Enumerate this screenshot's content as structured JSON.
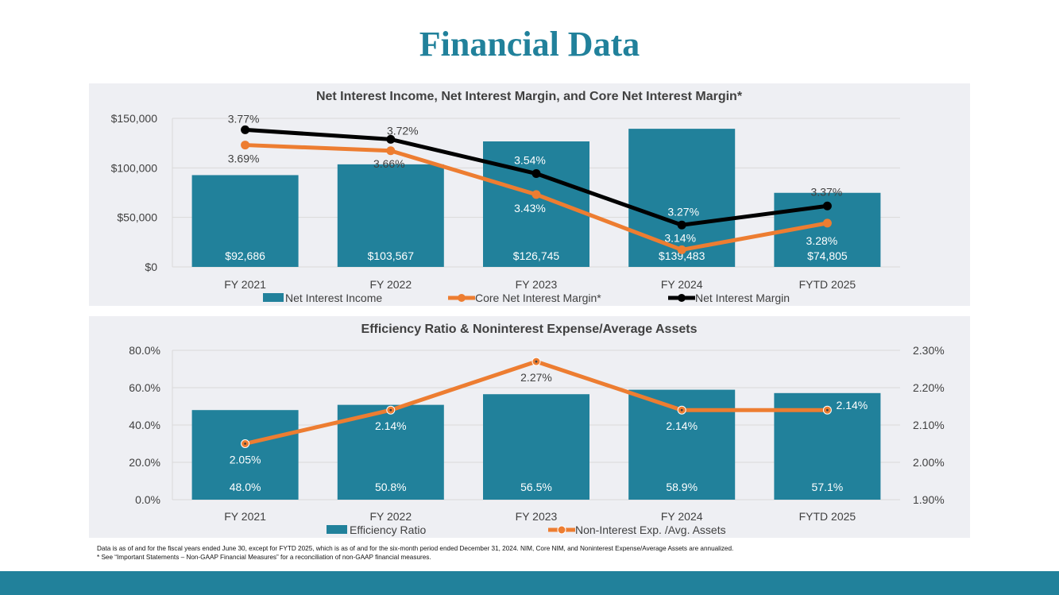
{
  "page": {
    "title": "Financial Data"
  },
  "colors": {
    "bar": "#21819b",
    "orange": "#ed7d31",
    "black": "#000000",
    "grid": "#d9d9d9",
    "panel": "#eeeff3",
    "title": "#21819b"
  },
  "chart_data": [
    {
      "type": "bar",
      "title": "Net Interest Income, Net Interest Margin, and Core Net Interest Margin*",
      "categories": [
        "FY 2021",
        "FY 2022",
        "FY 2023",
        "FY 2024",
        "FYTD 2025"
      ],
      "ylim": [
        0,
        150000
      ],
      "yticks": [
        "$0",
        "$50,000",
        "$100,000",
        "$150,000"
      ],
      "ytick_values": [
        0,
        50000,
        100000,
        150000
      ],
      "bars": {
        "name": "Net Interest Income",
        "values": [
          92686,
          103567,
          126745,
          139483,
          74805
        ],
        "labels": [
          "$92,686",
          "$103,567",
          "$126,745",
          "$139,483",
          "$74,805"
        ]
      },
      "y2lim": [
        3.05,
        3.83
      ],
      "lines": [
        {
          "name": "Net Interest Margin",
          "values": [
            3.77,
            3.72,
            3.54,
            3.27,
            3.37
          ],
          "labels": [
            "3.77%",
            "3.72%",
            "3.54%",
            "3.27%",
            "3.37%"
          ]
        },
        {
          "name": "Core Net Interest Margin*",
          "values": [
            3.69,
            3.66,
            3.43,
            3.14,
            3.28
          ],
          "labels": [
            "3.69%",
            "3.66%",
            "3.43%",
            "3.14%",
            "3.28%"
          ]
        }
      ],
      "legend": [
        "Net Interest Income",
        "Core Net Interest Margin*",
        "Net Interest Margin"
      ]
    },
    {
      "type": "bar",
      "title": "Efficiency Ratio & Noninterest Expense/Average Assets",
      "categories": [
        "FY 2021",
        "FY 2022",
        "FY 2023",
        "FY 2024",
        "FYTD 2025"
      ],
      "ylim": [
        0,
        80
      ],
      "yticks": [
        "0.0%",
        "20.0%",
        "40.0%",
        "60.0%",
        "80.0%"
      ],
      "ytick_values": [
        0,
        20,
        40,
        60,
        80
      ],
      "y2lim": [
        1.9,
        2.3
      ],
      "y2ticks": [
        "1.90%",
        "2.00%",
        "2.10%",
        "2.20%",
        "2.30%"
      ],
      "y2tick_values": [
        1.9,
        2.0,
        2.1,
        2.2,
        2.3
      ],
      "bars": {
        "name": "Efficiency Ratio",
        "values": [
          48.0,
          50.8,
          56.5,
          58.9,
          57.1
        ],
        "labels": [
          "48.0%",
          "50.8%",
          "56.5%",
          "58.9%",
          "57.1%"
        ]
      },
      "lines": [
        {
          "name": "Non-Interest Exp. /Avg. Assets",
          "values": [
            2.05,
            2.14,
            2.27,
            2.14,
            2.14
          ],
          "labels": [
            "2.05%",
            "2.14%",
            "2.27%",
            "2.14%",
            "2.14%"
          ]
        }
      ],
      "legend": [
        "Efficiency Ratio",
        "Non-Interest Exp. /Avg. Assets"
      ]
    }
  ],
  "footnotes": [
    "Data is as of and for the fiscal years ended June 30, except for FYTD 2025, which is as of and for the six-month period ended December 31, 2024. NIM, Core NIM, and Noninterest Expense/Average Assets are annualized.",
    "* See “Important Statements – Non-GAAP Financial Measures” for a reconciliation of non-GAAP financial measures."
  ]
}
